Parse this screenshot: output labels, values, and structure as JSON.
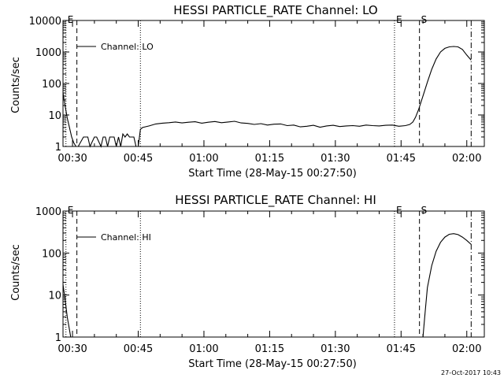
{
  "timestamp": "27-Oct-2017 10:43",
  "chart_data": [
    {
      "type": "line",
      "title": "HESSI PARTICLE_RATE Channel: LO",
      "xlabel": "Start Time (28-May-15 00:27:50)",
      "ylabel": "Counts/sec",
      "yscale": "log",
      "ylim": [
        1,
        10000
      ],
      "xlim_minutes": [
        27.83,
        124
      ],
      "xticks": [
        "00:30",
        "00:45",
        "01:00",
        "01:15",
        "01:30",
        "01:45",
        "02:00"
      ],
      "yticks": [
        "1",
        "10",
        "100",
        "1000",
        "10000"
      ],
      "legend": "Channel: LO",
      "markers": [
        {
          "label": "E",
          "time_min": 28.5,
          "style": "dotted"
        },
        {
          "label": "",
          "time_min": 31.0,
          "style": "dashed"
        },
        {
          "label": "",
          "time_min": 45.5,
          "style": "dotted"
        },
        {
          "label": "E",
          "time_min": 103.5,
          "style": "dotted"
        },
        {
          "label": "S",
          "time_min": 109.2,
          "style": "dashed"
        },
        {
          "label": "",
          "time_min": 121.0,
          "style": "dashdot"
        }
      ],
      "series": [
        {
          "name": "Channel: LO",
          "x_minutes": [
            27.83,
            28.3,
            28.8,
            29.3,
            29.8,
            30.3,
            30.8,
            31.3,
            32.5,
            33.5,
            34.0,
            35.0,
            35.5,
            36.5,
            37.0,
            37.5,
            38.0,
            38.5,
            39.5,
            40.0,
            40.5,
            41.0,
            41.5,
            42.0,
            42.5,
            43.0,
            43.5,
            44.0,
            44.5,
            45.0,
            45.5,
            46.0,
            47.5,
            49.0,
            50.5,
            52.0,
            53.5,
            55.0,
            56.5,
            58.0,
            59.5,
            61.0,
            62.5,
            64.0,
            65.5,
            67.0,
            68.5,
            70.0,
            71.5,
            73.0,
            74.5,
            76.0,
            77.5,
            79.0,
            80.5,
            82.0,
            83.5,
            85.0,
            86.5,
            88.0,
            89.5,
            91.0,
            92.5,
            94.0,
            95.5,
            97.0,
            98.5,
            100.0,
            101.5,
            103.0,
            104.5,
            106.0,
            107.0,
            107.7,
            108.3,
            109.0,
            110.0,
            111.0,
            112.0,
            113.0,
            114.0,
            115.0,
            116.0,
            117.0,
            118.0,
            119.0,
            120.0,
            121.0
          ],
          "y": [
            50,
            20,
            8,
            4,
            2,
            1.3,
            1.0,
            1.0,
            2.0,
            2.0,
            1.0,
            2.0,
            2.0,
            1.0,
            2.0,
            2.0,
            1.0,
            2.0,
            2.0,
            1.0,
            2.0,
            1.0,
            2.5,
            2.0,
            2.5,
            2.0,
            2.0,
            2.0,
            1.0,
            1.0,
            3.5,
            4.0,
            4.5,
            5.2,
            5.5,
            5.7,
            6.0,
            5.6,
            5.9,
            6.1,
            5.5,
            5.9,
            6.2,
            5.7,
            6.0,
            6.3,
            5.6,
            5.4,
            5.0,
            5.3,
            4.8,
            5.1,
            5.2,
            4.6,
            4.8,
            4.2,
            4.4,
            4.7,
            4.1,
            4.5,
            4.7,
            4.3,
            4.5,
            4.6,
            4.4,
            4.8,
            4.6,
            4.5,
            4.7,
            4.8,
            4.4,
            4.6,
            5.0,
            6.0,
            8.5,
            15,
            40,
            110,
            280,
            600,
            1000,
            1300,
            1450,
            1500,
            1450,
            1200,
            800,
            550
          ]
        }
      ]
    },
    {
      "type": "line",
      "title": "HESSI PARTICLE_RATE Channel: HI",
      "xlabel": "Start Time (28-May-15 00:27:50)",
      "ylabel": "Counts/sec",
      "yscale": "log",
      "ylim": [
        1,
        1000
      ],
      "xlim_minutes": [
        27.83,
        124
      ],
      "xticks": [
        "00:30",
        "00:45",
        "01:00",
        "01:15",
        "01:30",
        "01:45",
        "02:00"
      ],
      "yticks": [
        "1",
        "10",
        "100",
        "1000"
      ],
      "legend": "Channel: HI",
      "markers": [
        {
          "label": "E",
          "time_min": 28.5,
          "style": "dotted"
        },
        {
          "label": "",
          "time_min": 31.0,
          "style": "dashed"
        },
        {
          "label": "",
          "time_min": 45.5,
          "style": "dotted"
        },
        {
          "label": "E",
          "time_min": 103.5,
          "style": "dotted"
        },
        {
          "label": "S",
          "time_min": 109.2,
          "style": "dashed"
        },
        {
          "label": "",
          "time_min": 121.0,
          "style": "dashdot"
        }
      ],
      "series": [
        {
          "name": "Channel: HI",
          "x_minutes": [
            27.83,
            28.3,
            28.8,
            29.3,
            29.6
          ],
          "y": [
            18,
            8,
            3,
            1.5,
            1.0
          ]
        },
        {
          "name": "Channel: HI",
          "x_minutes": [
            110.0,
            110.5,
            111.0,
            112.0,
            113.0,
            114.0,
            115.0,
            116.0,
            117.0,
            118.0,
            119.0,
            120.0,
            121.0
          ],
          "y": [
            1.0,
            4,
            15,
            50,
            110,
            180,
            240,
            280,
            290,
            275,
            240,
            200,
            160
          ]
        }
      ]
    }
  ]
}
